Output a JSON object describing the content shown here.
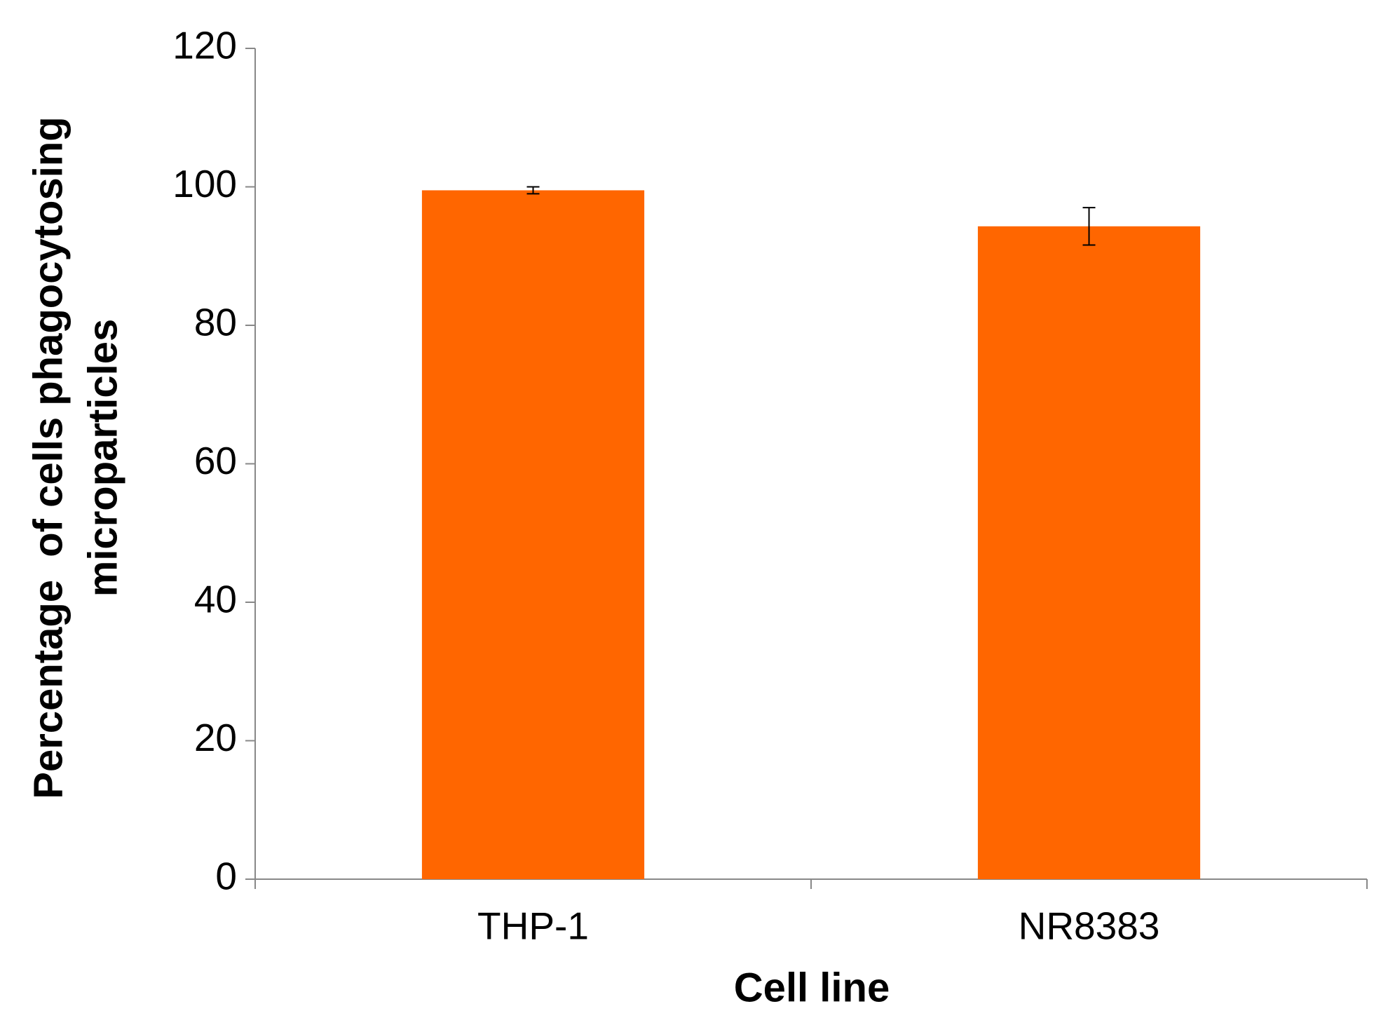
{
  "chart_data": {
    "type": "bar",
    "x_label": "Cell line",
    "y_label": [
      "Percentage  of cells phagocytosing",
      "microparticles"
    ],
    "categories": [
      "THP-1",
      "NR8383"
    ],
    "values": [
      99.5,
      94.3
    ],
    "errors": [
      0.5,
      2.7
    ],
    "color": "#ff6600",
    "ylim": [
      0,
      120
    ],
    "yticks": [
      0,
      20,
      40,
      60,
      80,
      100,
      120
    ],
    "grid": false
  }
}
